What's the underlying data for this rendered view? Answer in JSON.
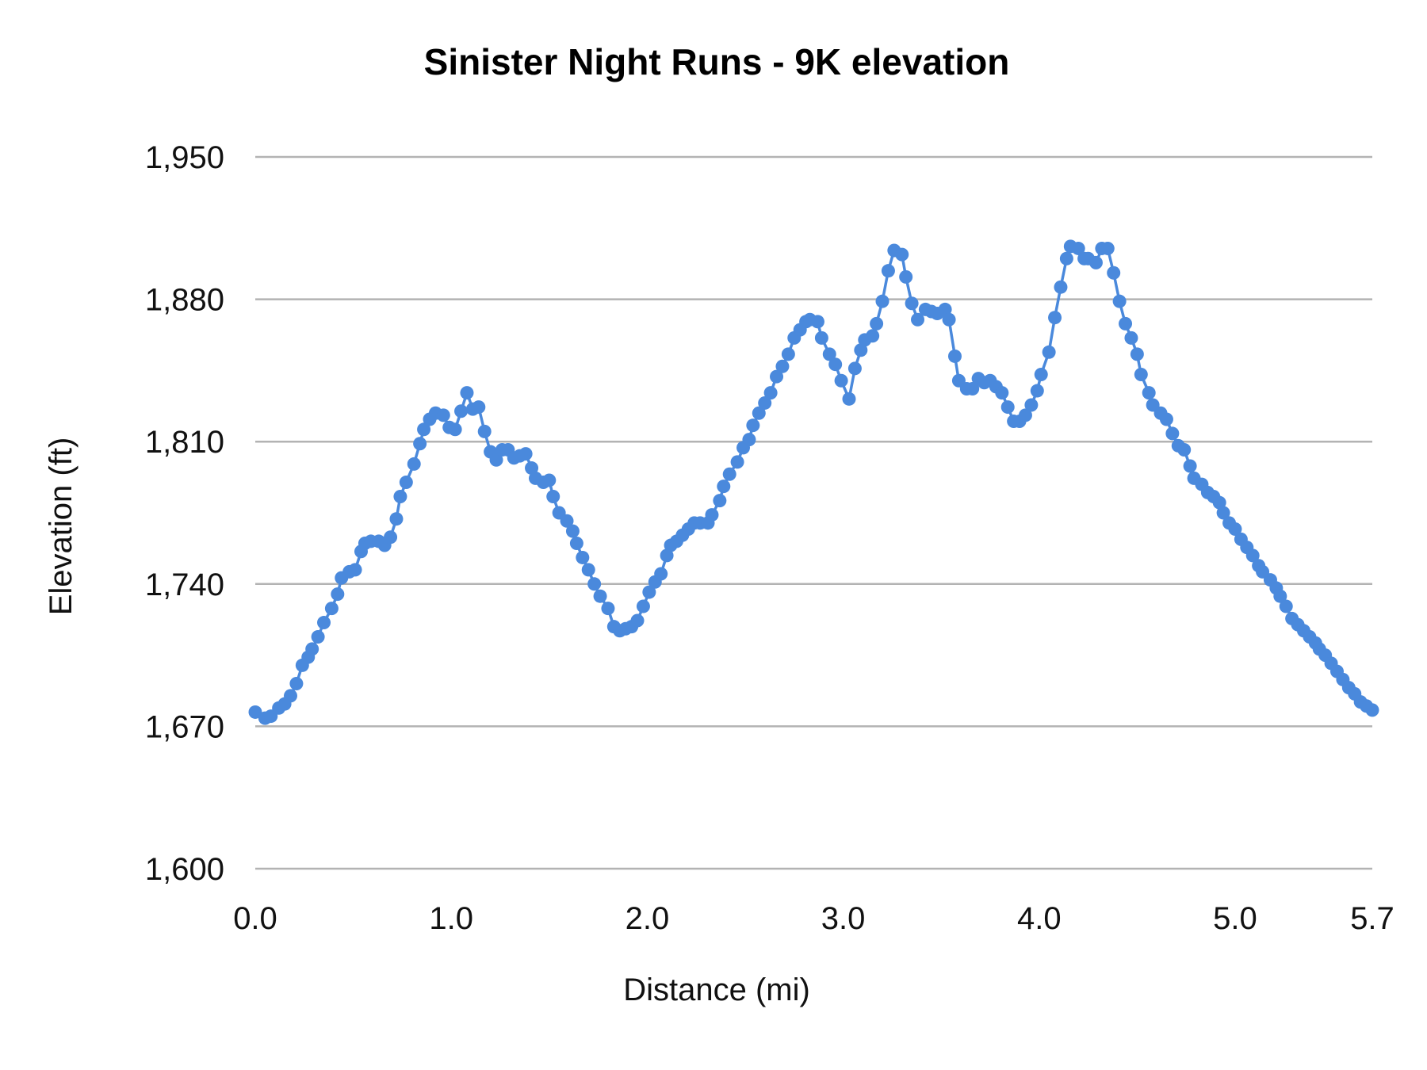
{
  "chart_data": {
    "type": "line",
    "title": "Sinister Night Runs - 9K elevation",
    "xlabel": "Distance (mi)",
    "ylabel": "Elevation (ft)",
    "xlim": [
      0,
      5.7
    ],
    "ylim": [
      1600,
      1950
    ],
    "x_ticks": [
      "0.0",
      "1.0",
      "2.0",
      "3.0",
      "4.0",
      "5.0",
      "5.7"
    ],
    "x_tick_values": [
      0,
      1,
      2,
      3,
      4,
      5,
      5.7
    ],
    "y_ticks": [
      "1,600",
      "1,670",
      "1,740",
      "1,810",
      "1,880",
      "1,950"
    ],
    "y_tick_values": [
      1600,
      1670,
      1740,
      1810,
      1880,
      1950
    ],
    "grid": "horizontal",
    "markers": true,
    "series_color": "#4a89dc",
    "grid_color": "#b3b3b3",
    "x": [
      0.0,
      0.05,
      0.08,
      0.12,
      0.15,
      0.18,
      0.21,
      0.24,
      0.27,
      0.29,
      0.32,
      0.35,
      0.39,
      0.42,
      0.44,
      0.48,
      0.51,
      0.54,
      0.56,
      0.59,
      0.63,
      0.66,
      0.69,
      0.72,
      0.74,
      0.77,
      0.81,
      0.84,
      0.86,
      0.89,
      0.92,
      0.96,
      0.99,
      1.02,
      1.05,
      1.08,
      1.11,
      1.14,
      1.17,
      1.2,
      1.23,
      1.26,
      1.29,
      1.32,
      1.35,
      1.38,
      1.41,
      1.43,
      1.47,
      1.5,
      1.52,
      1.55,
      1.59,
      1.62,
      1.64,
      1.67,
      1.7,
      1.73,
      1.76,
      1.8,
      1.83,
      1.86,
      1.89,
      1.92,
      1.95,
      1.98,
      2.01,
      2.04,
      2.07,
      2.1,
      2.12,
      2.15,
      2.18,
      2.21,
      2.24,
      2.27,
      2.31,
      2.33,
      2.37,
      2.39,
      2.42,
      2.46,
      2.49,
      2.52,
      2.54,
      2.57,
      2.6,
      2.63,
      2.66,
      2.69,
      2.72,
      2.75,
      2.78,
      2.81,
      2.83,
      2.87,
      2.89,
      2.93,
      2.96,
      2.99,
      3.03,
      3.06,
      3.09,
      3.11,
      3.15,
      3.17,
      3.2,
      3.23,
      3.26,
      3.3,
      3.32,
      3.35,
      3.38,
      3.42,
      3.45,
      3.48,
      3.52,
      3.54,
      3.57,
      3.59,
      3.63,
      3.66,
      3.69,
      3.72,
      3.75,
      3.78,
      3.81,
      3.84,
      3.87,
      3.9,
      3.93,
      3.96,
      3.99,
      4.01,
      4.05,
      4.08,
      4.11,
      4.14,
      4.16,
      4.2,
      4.23,
      4.25,
      4.29,
      4.32,
      4.35,
      4.38,
      4.41,
      4.44,
      4.47,
      4.5,
      4.52,
      4.56,
      4.58,
      4.62,
      4.65,
      4.68,
      4.71,
      4.74,
      4.77,
      4.79,
      4.83,
      4.86,
      4.89,
      4.92,
      4.94,
      4.97,
      5.0,
      5.03,
      5.06,
      5.09,
      5.12,
      5.14,
      5.18,
      5.21,
      5.23,
      5.26,
      5.29,
      5.32,
      5.35,
      5.38,
      5.41,
      5.43,
      5.46,
      5.49,
      5.52,
      5.55,
      5.58,
      5.61,
      5.64,
      5.67,
      5.7
    ],
    "y": [
      1677,
      1674,
      1675,
      1679,
      1681,
      1685,
      1691,
      1700,
      1704,
      1708,
      1714,
      1721,
      1728,
      1735,
      1743,
      1746,
      1747,
      1756,
      1760,
      1761,
      1761,
      1759,
      1763,
      1772,
      1783,
      1790,
      1799,
      1809,
      1816,
      1821,
      1824,
      1823,
      1817,
      1816,
      1825,
      1834,
      1826,
      1827,
      1815,
      1805,
      1801,
      1806,
      1806,
      1802,
      1803,
      1804,
      1797,
      1792,
      1790,
      1791,
      1783,
      1775,
      1771,
      1766,
      1760,
      1753,
      1747,
      1740,
      1734,
      1728,
      1719,
      1717,
      1718,
      1719,
      1722,
      1729,
      1736,
      1741,
      1745,
      1754,
      1759,
      1761,
      1764,
      1767,
      1770,
      1770,
      1770,
      1774,
      1781,
      1788,
      1794,
      1800,
      1807,
      1811,
      1818,
      1824,
      1829,
      1834,
      1842,
      1847,
      1853,
      1861,
      1865,
      1869,
      1870,
      1869,
      1861,
      1853,
      1848,
      1840,
      1831,
      1846,
      1855,
      1860,
      1862,
      1868,
      1879,
      1894,
      1904,
      1902,
      1891,
      1878,
      1870,
      1875,
      1874,
      1873,
      1875,
      1870,
      1852,
      1840,
      1836,
      1836,
      1841,
      1839,
      1840,
      1837,
      1834,
      1827,
      1820,
      1820,
      1823,
      1828,
      1835,
      1843,
      1854,
      1871,
      1886,
      1900,
      1906,
      1905,
      1900,
      1900,
      1898,
      1905,
      1905,
      1893,
      1879,
      1868,
      1861,
      1853,
      1843,
      1834,
      1828,
      1824,
      1821,
      1814,
      1808,
      1806,
      1798,
      1792,
      1789,
      1785,
      1783,
      1780,
      1775,
      1770,
      1767,
      1762,
      1758,
      1754,
      1749,
      1746,
      1742,
      1738,
      1734,
      1729,
      1723,
      1720,
      1717,
      1714,
      1711,
      1708,
      1705,
      1701,
      1697,
      1693,
      1689,
      1686,
      1682,
      1680,
      1678
    ]
  }
}
